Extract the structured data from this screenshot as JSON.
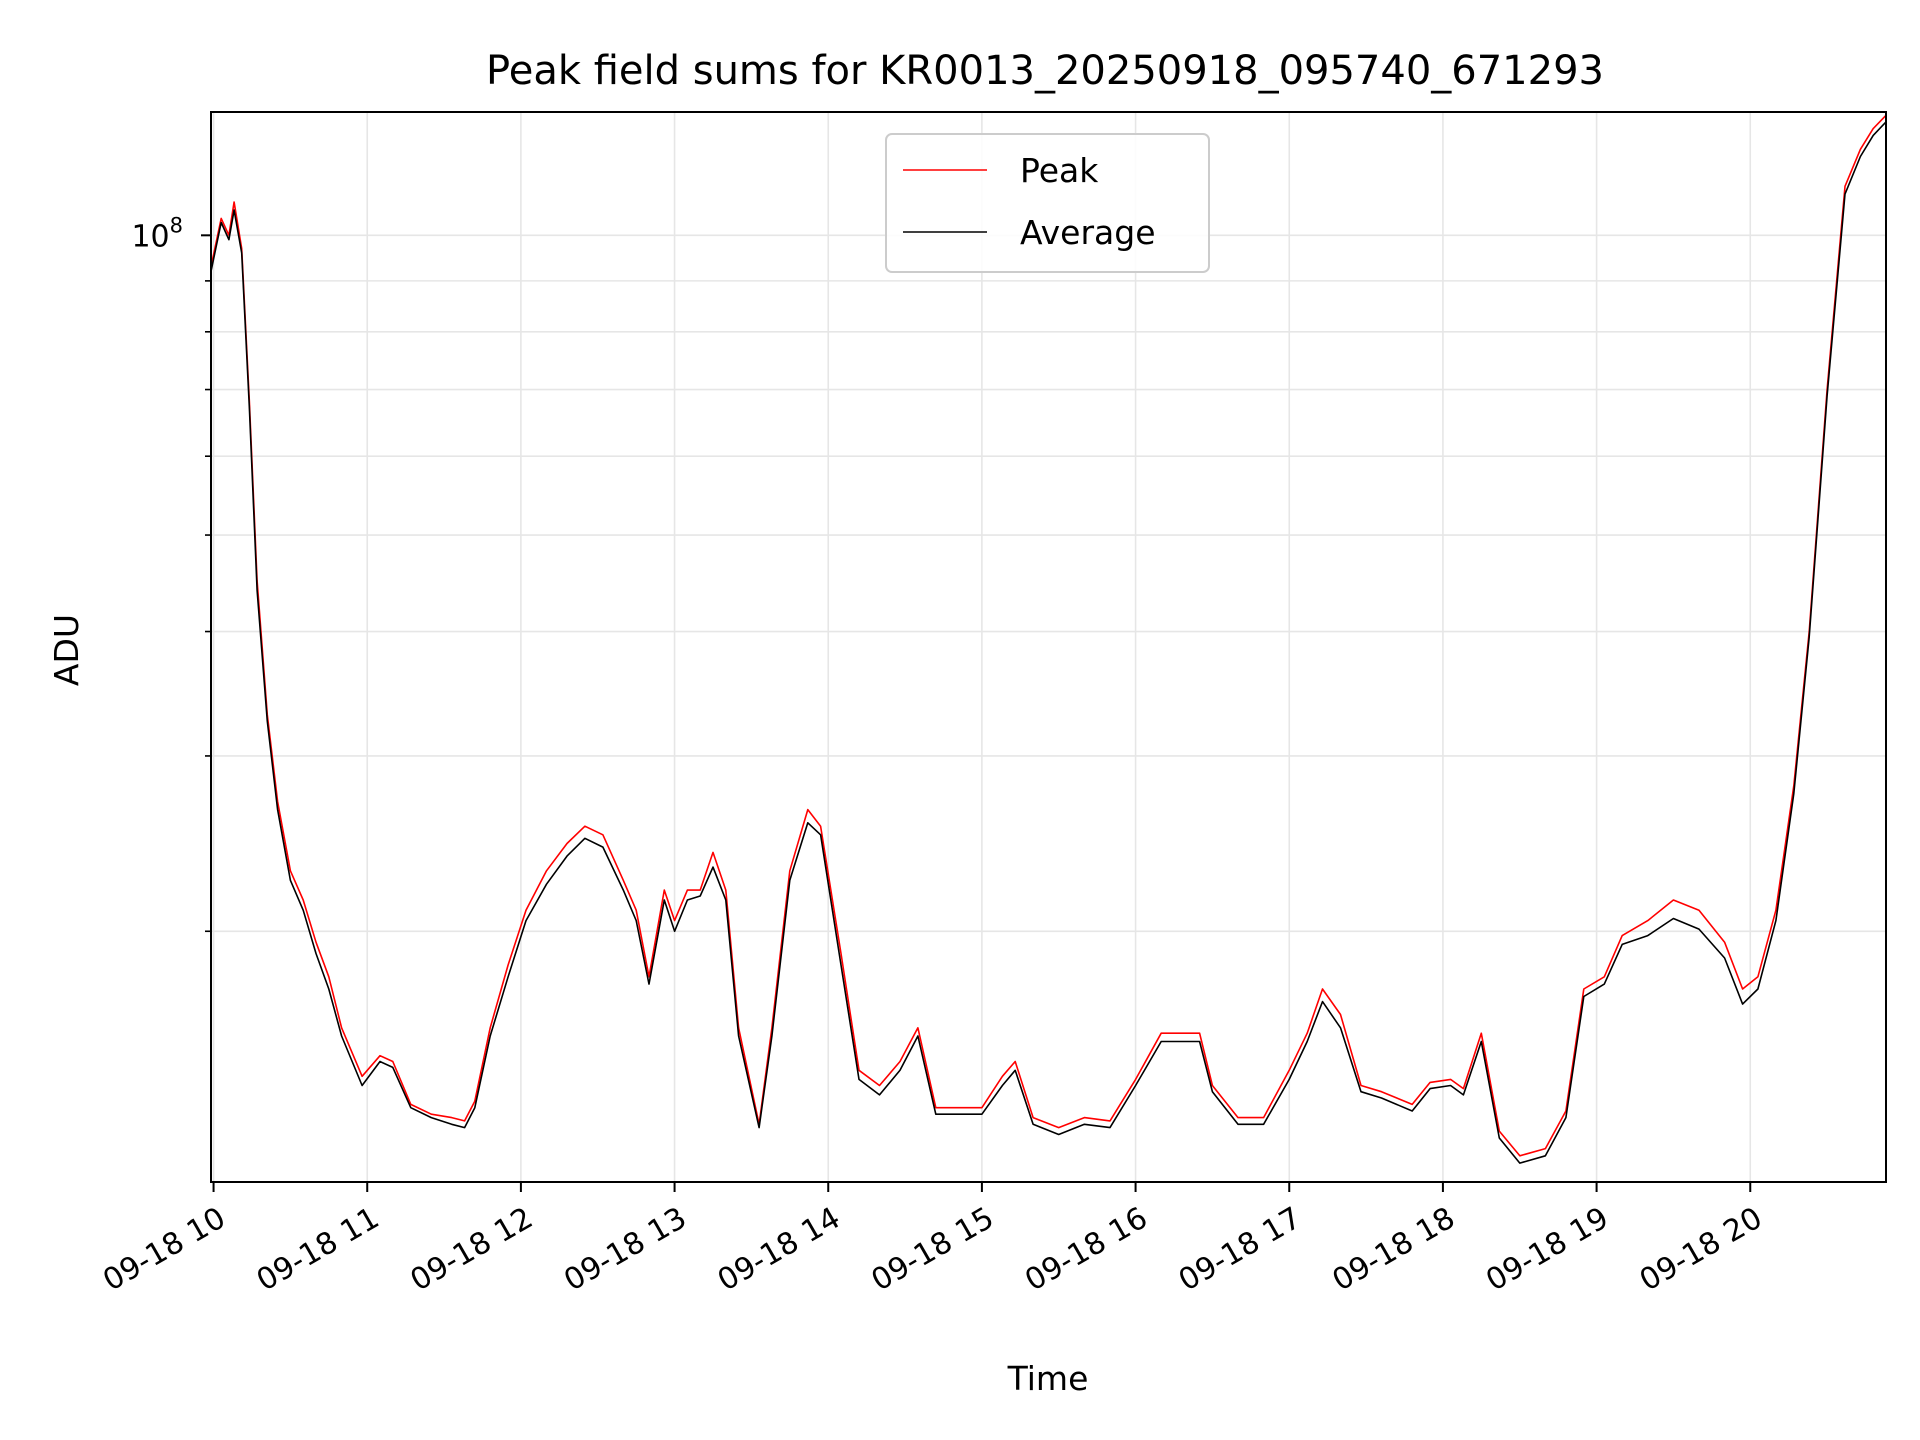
{
  "chart_data": {
    "type": "line",
    "title": "Peak field sums for KR0013_20250918_095740_671293",
    "xlabel": "Time",
    "ylabel": "ADU",
    "xlim": [
      "09-18 09:59",
      "09-18 20:53"
    ],
    "ylim": [
      11200000,
      133000000
    ],
    "yscale": "log",
    "y_tick_label_base": "10",
    "y_tick_label_exp": "8",
    "grid": true,
    "legend_position": "upper center",
    "x_ticks": [
      "09-18 10",
      "09-18 11",
      "09-18 12",
      "09-18 13",
      "09-18 14",
      "09-18 15",
      "09-18 16",
      "09-18 17",
      "09-18 18",
      "09-18 19",
      "09-18 20"
    ],
    "series": [
      {
        "name": "Peak",
        "color": "#ff0000",
        "points": [
          [
            "09-18 09:59",
            93000000
          ],
          [
            "09-18 10:03",
            104000000
          ],
          [
            "09-18 10:06",
            100000000
          ],
          [
            "09-18 10:08",
            108000000
          ],
          [
            "09-18 10:11",
            97000000
          ],
          [
            "09-18 10:14",
            68000000
          ],
          [
            "09-18 10:17",
            45000000
          ],
          [
            "09-18 10:21",
            33000000
          ],
          [
            "09-18 10:25",
            27000000
          ],
          [
            "09-18 10:30",
            23000000
          ],
          [
            "09-18 10:35",
            21500000
          ],
          [
            "09-18 10:40",
            19500000
          ],
          [
            "09-18 10:45",
            18000000
          ],
          [
            "09-18 10:50",
            16000000
          ],
          [
            "09-18 10:58",
            14300000
          ],
          [
            "09-18 11:05",
            15000000
          ],
          [
            "09-18 11:10",
            14800000
          ],
          [
            "09-18 11:17",
            13400000
          ],
          [
            "09-18 11:25",
            13100000
          ],
          [
            "09-18 11:33",
            13000000
          ],
          [
            "09-18 11:38",
            12900000
          ],
          [
            "09-18 11:42",
            13500000
          ],
          [
            "09-18 11:48",
            16000000
          ],
          [
            "09-18 11:55",
            18500000
          ],
          [
            "09-18 12:02",
            21000000
          ],
          [
            "09-18 12:10",
            23000000
          ],
          [
            "09-18 12:18",
            24500000
          ],
          [
            "09-18 12:25",
            25500000
          ],
          [
            "09-18 12:32",
            25000000
          ],
          [
            "09-18 12:40",
            22500000
          ],
          [
            "09-18 12:45",
            21000000
          ],
          [
            "09-18 12:50",
            18000000
          ],
          [
            "09-18 12:56",
            22000000
          ],
          [
            "09-18 13:00",
            20500000
          ],
          [
            "09-18 13:05",
            22000000
          ],
          [
            "09-18 13:10",
            22000000
          ],
          [
            "09-18 13:15",
            24000000
          ],
          [
            "09-18 13:20",
            22000000
          ],
          [
            "09-18 13:25",
            16000000
          ],
          [
            "09-18 13:33",
            12800000
          ],
          [
            "09-18 13:38",
            16000000
          ],
          [
            "09-18 13:45",
            23000000
          ],
          [
            "09-18 13:52",
            26500000
          ],
          [
            "09-18 13:57",
            25500000
          ],
          [
            "09-18 14:05",
            19000000
          ],
          [
            "09-18 14:12",
            14500000
          ],
          [
            "09-18 14:20",
            14000000
          ],
          [
            "09-18 14:28",
            14800000
          ],
          [
            "09-18 14:35",
            16000000
          ],
          [
            "09-18 14:42",
            13300000
          ],
          [
            "09-18 14:50",
            13300000
          ],
          [
            "09-18 15:00",
            13300000
          ],
          [
            "09-18 15:08",
            14300000
          ],
          [
            "09-18 15:13",
            14800000
          ],
          [
            "09-18 15:20",
            13000000
          ],
          [
            "09-18 15:30",
            12700000
          ],
          [
            "09-18 15:40",
            13000000
          ],
          [
            "09-18 15:50",
            12900000
          ],
          [
            "09-18 16:00",
            14200000
          ],
          [
            "09-18 16:10",
            15800000
          ],
          [
            "09-18 16:20",
            15800000
          ],
          [
            "09-18 16:25",
            15800000
          ],
          [
            "09-18 16:30",
            14000000
          ],
          [
            "09-18 16:40",
            13000000
          ],
          [
            "09-18 16:50",
            13000000
          ],
          [
            "09-18 17:00",
            14500000
          ],
          [
            "09-18 17:07",
            15800000
          ],
          [
            "09-18 17:13",
            17500000
          ],
          [
            "09-18 17:20",
            16500000
          ],
          [
            "09-18 17:28",
            14000000
          ],
          [
            "09-18 17:36",
            13800000
          ],
          [
            "09-18 17:48",
            13400000
          ],
          [
            "09-18 17:55",
            14100000
          ],
          [
            "09-18 18:03",
            14200000
          ],
          [
            "09-18 18:08",
            13900000
          ],
          [
            "09-18 18:15",
            15800000
          ],
          [
            "09-18 18:22",
            12600000
          ],
          [
            "09-18 18:30",
            11900000
          ],
          [
            "09-18 18:40",
            12100000
          ],
          [
            "09-18 18:48",
            13200000
          ],
          [
            "09-18 18:55",
            17500000
          ],
          [
            "09-18 19:03",
            18000000
          ],
          [
            "09-18 19:10",
            19800000
          ],
          [
            "09-18 19:20",
            20500000
          ],
          [
            "09-18 19:30",
            21500000
          ],
          [
            "09-18 19:40",
            21000000
          ],
          [
            "09-18 19:50",
            19500000
          ],
          [
            "09-18 19:57",
            17500000
          ],
          [
            "09-18 20:03",
            18000000
          ],
          [
            "09-18 20:10",
            21000000
          ],
          [
            "09-18 20:17",
            28000000
          ],
          [
            "09-18 20:23",
            40000000
          ],
          [
            "09-18 20:30",
            70000000
          ],
          [
            "09-18 20:37",
            112000000
          ],
          [
            "09-18 20:43",
            122000000
          ],
          [
            "09-18 20:48",
            128000000
          ],
          [
            "09-18 20:53",
            132000000
          ]
        ]
      },
      {
        "name": "Average",
        "color": "#000000",
        "points": [
          [
            "09-18 09:59",
            92000000
          ],
          [
            "09-18 10:03",
            103000000
          ],
          [
            "09-18 10:06",
            99000000
          ],
          [
            "09-18 10:08",
            106000000
          ],
          [
            "09-18 10:11",
            96000000
          ],
          [
            "09-18 10:14",
            67000000
          ],
          [
            "09-18 10:17",
            44000000
          ],
          [
            "09-18 10:21",
            32500000
          ],
          [
            "09-18 10:25",
            26500000
          ],
          [
            "09-18 10:30",
            22500000
          ],
          [
            "09-18 10:35",
            21000000
          ],
          [
            "09-18 10:40",
            19000000
          ],
          [
            "09-18 10:45",
            17500000
          ],
          [
            "09-18 10:50",
            15700000
          ],
          [
            "09-18 10:58",
            14000000
          ],
          [
            "09-18 11:05",
            14800000
          ],
          [
            "09-18 11:10",
            14600000
          ],
          [
            "09-18 11:17",
            13300000
          ],
          [
            "09-18 11:25",
            13000000
          ],
          [
            "09-18 11:33",
            12800000
          ],
          [
            "09-18 11:38",
            12700000
          ],
          [
            "09-18 11:42",
            13300000
          ],
          [
            "09-18 11:48",
            15700000
          ],
          [
            "09-18 11:55",
            18000000
          ],
          [
            "09-18 12:02",
            20500000
          ],
          [
            "09-18 12:10",
            22300000
          ],
          [
            "09-18 12:18",
            23800000
          ],
          [
            "09-18 12:25",
            24800000
          ],
          [
            "09-18 12:32",
            24300000
          ],
          [
            "09-18 12:40",
            22000000
          ],
          [
            "09-18 12:45",
            20500000
          ],
          [
            "09-18 12:50",
            17700000
          ],
          [
            "09-18 12:56",
            21500000
          ],
          [
            "09-18 13:00",
            20000000
          ],
          [
            "09-18 13:05",
            21500000
          ],
          [
            "09-18 13:10",
            21700000
          ],
          [
            "09-18 13:15",
            23200000
          ],
          [
            "09-18 13:20",
            21500000
          ],
          [
            "09-18 13:25",
            15700000
          ],
          [
            "09-18 13:33",
            12700000
          ],
          [
            "09-18 13:38",
            15700000
          ],
          [
            "09-18 13:45",
            22500000
          ],
          [
            "09-18 13:52",
            25700000
          ],
          [
            "09-18 13:57",
            25000000
          ],
          [
            "09-18 14:05",
            18500000
          ],
          [
            "09-18 14:12",
            14200000
          ],
          [
            "09-18 14:20",
            13700000
          ],
          [
            "09-18 14:28",
            14500000
          ],
          [
            "09-18 14:35",
            15700000
          ],
          [
            "09-18 14:42",
            13100000
          ],
          [
            "09-18 14:50",
            13100000
          ],
          [
            "09-18 15:00",
            13100000
          ],
          [
            "09-18 15:08",
            14000000
          ],
          [
            "09-18 15:13",
            14500000
          ],
          [
            "09-18 15:20",
            12800000
          ],
          [
            "09-18 15:30",
            12500000
          ],
          [
            "09-18 15:40",
            12800000
          ],
          [
            "09-18 15:50",
            12700000
          ],
          [
            "09-18 16:00",
            14000000
          ],
          [
            "09-18 16:10",
            15500000
          ],
          [
            "09-18 16:20",
            15500000
          ],
          [
            "09-18 16:25",
            15500000
          ],
          [
            "09-18 16:30",
            13800000
          ],
          [
            "09-18 16:40",
            12800000
          ],
          [
            "09-18 16:50",
            12800000
          ],
          [
            "09-18 17:00",
            14200000
          ],
          [
            "09-18 17:07",
            15500000
          ],
          [
            "09-18 17:13",
            17000000
          ],
          [
            "09-18 17:20",
            16000000
          ],
          [
            "09-18 17:28",
            13800000
          ],
          [
            "09-18 17:36",
            13600000
          ],
          [
            "09-18 17:48",
            13200000
          ],
          [
            "09-18 17:55",
            13900000
          ],
          [
            "09-18 18:03",
            14000000
          ],
          [
            "09-18 18:08",
            13700000
          ],
          [
            "09-18 18:15",
            15500000
          ],
          [
            "09-18 18:22",
            12400000
          ],
          [
            "09-18 18:30",
            11700000
          ],
          [
            "09-18 18:40",
            11900000
          ],
          [
            "09-18 18:48",
            13000000
          ],
          [
            "09-18 18:55",
            17200000
          ],
          [
            "09-18 19:03",
            17700000
          ],
          [
            "09-18 19:10",
            19400000
          ],
          [
            "09-18 19:20",
            19800000
          ],
          [
            "09-18 19:30",
            20600000
          ],
          [
            "09-18 19:40",
            20100000
          ],
          [
            "09-18 19:50",
            18800000
          ],
          [
            "09-18 19:57",
            16900000
          ],
          [
            "09-18 20:03",
            17500000
          ],
          [
            "09-18 20:10",
            20500000
          ],
          [
            "09-18 20:17",
            27500000
          ],
          [
            "09-18 20:23",
            39500000
          ],
          [
            "09-18 20:30",
            69000000
          ],
          [
            "09-18 20:37",
            110000000
          ],
          [
            "09-18 20:43",
            120000000
          ],
          [
            "09-18 20:48",
            126000000
          ],
          [
            "09-18 20:53",
            130000000
          ]
        ]
      }
    ]
  }
}
